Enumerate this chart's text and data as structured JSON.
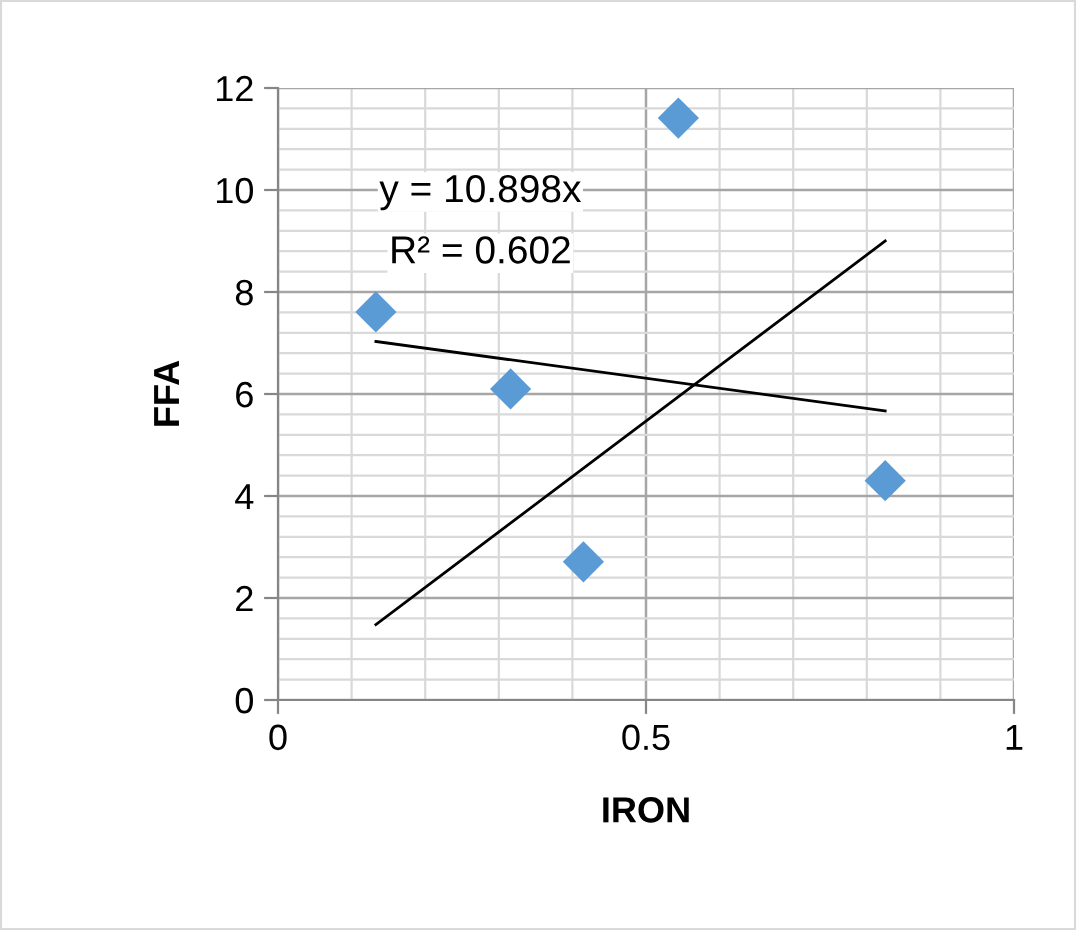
{
  "chart_data": {
    "type": "scatter",
    "xlabel": "IRON",
    "ylabel": "FFA",
    "xlim": [
      0,
      1
    ],
    "xticks": [
      0,
      0.5,
      1
    ],
    "ylim": [
      0,
      12
    ],
    "yticks": [
      0,
      2,
      4,
      6,
      8,
      10,
      12
    ],
    "grid": true,
    "series": [
      {
        "marker": "diamond",
        "color": "#5b9bd5",
        "x": [
          0.133,
          0.316,
          0.415,
          0.544,
          0.825
        ],
        "values": [
          7.61,
          6.1,
          2.71,
          11.41,
          4.3
        ]
      },
      {
        "type": "line",
        "color": "#000000",
        "x": [
          0.133,
          0.825
        ],
        "values": [
          1.48,
          9.0
        ]
      },
      {
        "type": "line",
        "color": "#000000",
        "x": [
          0.133,
          0.825
        ],
        "values": [
          7.03,
          5.67
        ]
      }
    ],
    "annotations": [
      "y = 10.898x",
      "R² = 0.602"
    ]
  }
}
